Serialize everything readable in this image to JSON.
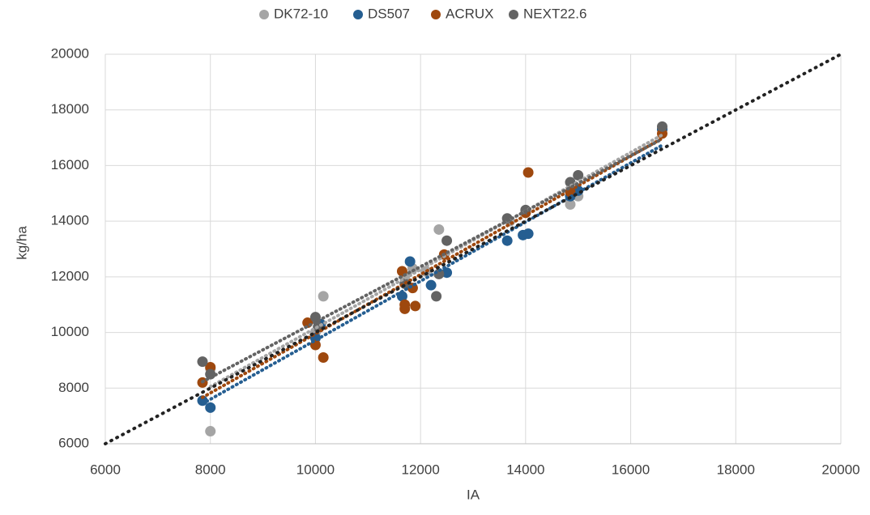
{
  "chart_data": {
    "type": "scatter",
    "x_label": "IA",
    "y_label": "kg/ha",
    "xlim": [
      6000,
      20000
    ],
    "ylim": [
      6000,
      20000
    ],
    "xticks": [
      6000,
      8000,
      10000,
      12000,
      14000,
      16000,
      18000,
      20000
    ],
    "yticks": [
      6000,
      8000,
      10000,
      12000,
      14000,
      16000,
      18000,
      20000
    ],
    "grid": true,
    "legend": "top",
    "trendline": "linear",
    "reference_line": {
      "color": "#222222",
      "x": [
        6000,
        20000
      ],
      "y": [
        6000,
        20000
      ]
    },
    "series": [
      {
        "name": "DK72-10",
        "color": "#a5a5a5",
        "x": [
          8000,
          8000,
          10150,
          12350,
          11700,
          11850,
          14850,
          15000,
          16600,
          10000,
          12100,
          13700
        ],
        "values": [
          8700,
          6450,
          11300,
          13700,
          12000,
          12300,
          14600,
          14900,
          17300,
          10000,
          12200,
          14000
        ]
      },
      {
        "name": "DS507",
        "color": "#255e91",
        "x": [
          7850,
          8000,
          10000,
          10100,
          11650,
          11800,
          12200,
          12500,
          13650,
          13950,
          14050,
          14850,
          15000,
          16600
        ],
        "values": [
          7550,
          7300,
          9800,
          10300,
          11300,
          12550,
          11700,
          12150,
          13300,
          13500,
          13550,
          14900,
          15100,
          17300
        ]
      },
      {
        "name": "ACRUX",
        "color": "#9e480e",
        "x": [
          7850,
          8000,
          9850,
          10000,
          10150,
          11650,
          11700,
          11700,
          11900,
          11850,
          12450,
          14050,
          14000,
          14850,
          16600
        ],
        "values": [
          8200,
          8750,
          10350,
          9550,
          9100,
          12200,
          10850,
          11000,
          10950,
          11600,
          12800,
          15750,
          14300,
          15050,
          17150
        ]
      },
      {
        "name": "NEXT22.6",
        "color": "#636363",
        "x": [
          7850,
          8000,
          10000,
          10050,
          11700,
          12300,
          12500,
          12350,
          13650,
          14000,
          14850,
          15000,
          16600
        ],
        "values": [
          8950,
          8500,
          10550,
          10200,
          11750,
          11300,
          13300,
          12100,
          14100,
          14400,
          15400,
          15650,
          17400
        ]
      }
    ]
  }
}
